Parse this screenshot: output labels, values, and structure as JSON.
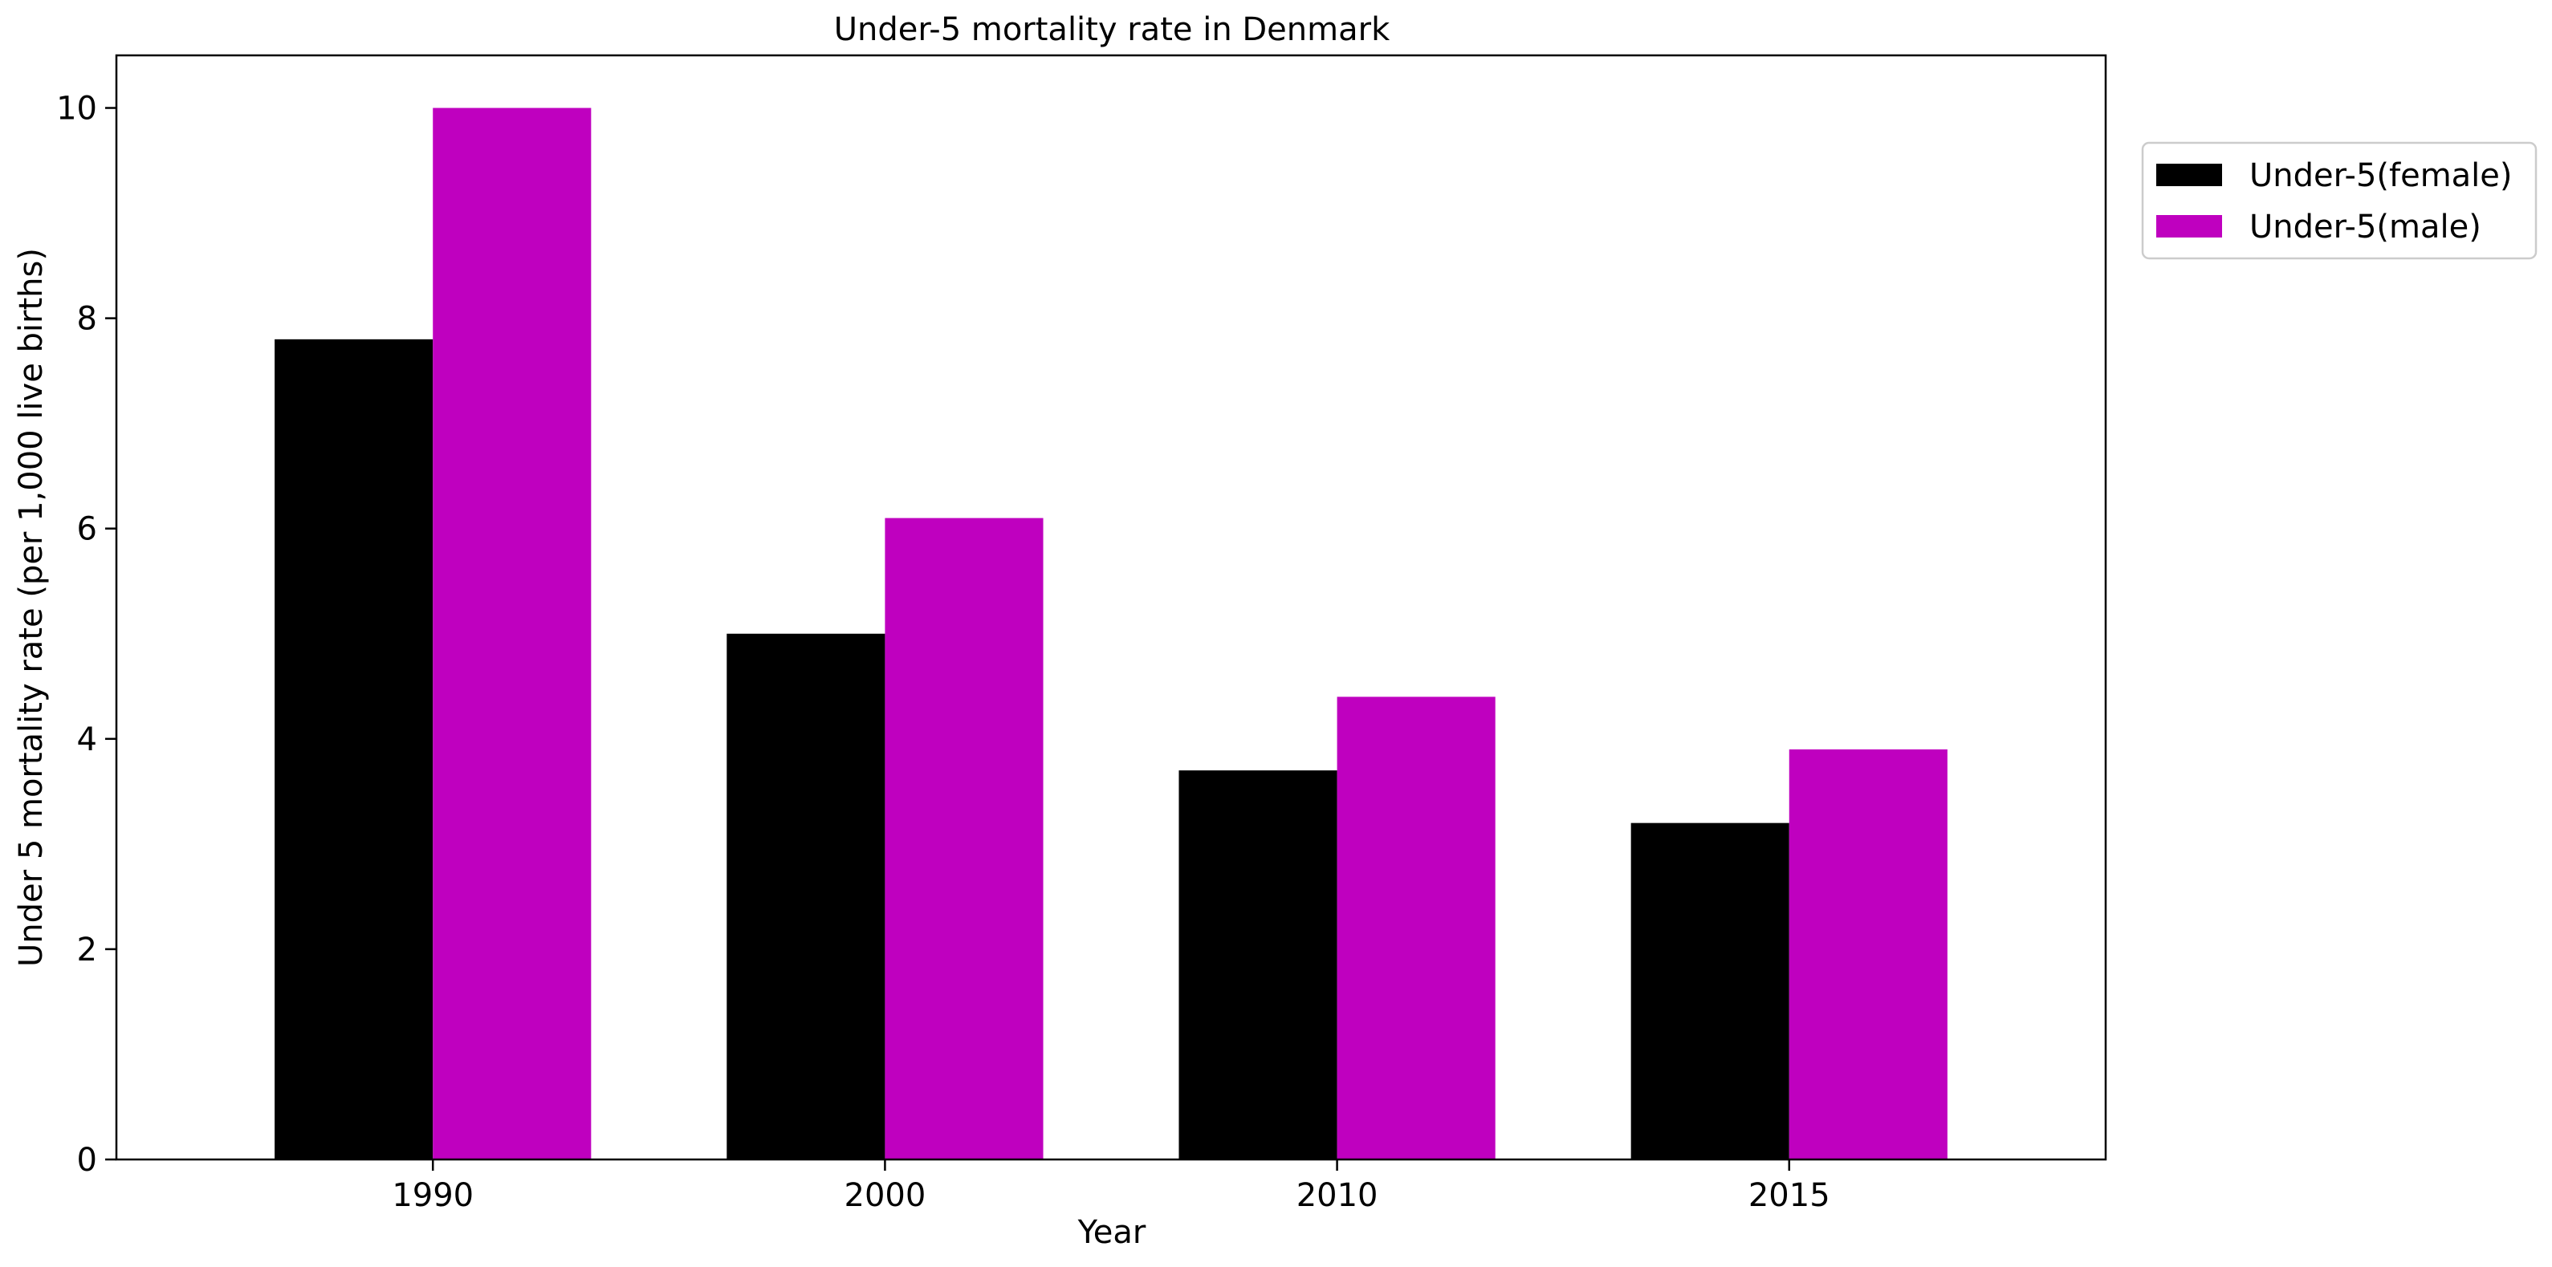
{
  "chart_data": {
    "type": "bar",
    "title": "Under-5 mortality rate in Denmark",
    "xlabel": "Year",
    "ylabel": "Under 5 mortality rate (per 1,000 live births)",
    "categories": [
      "1990",
      "2000",
      "2010",
      "2015"
    ],
    "series": [
      {
        "name": "Under-5(female)",
        "values": [
          7.8,
          5.0,
          3.7,
          3.2
        ],
        "color": "#000000"
      },
      {
        "name": "Under-5(male)",
        "values": [
          10.0,
          6.1,
          4.4,
          3.9
        ],
        "color": "#bf00bf"
      }
    ],
    "ylim": [
      0,
      10.5
    ],
    "yticks": [
      0,
      2,
      4,
      6,
      8,
      10
    ],
    "grid": false,
    "legend_position": "upper-right-outside"
  }
}
